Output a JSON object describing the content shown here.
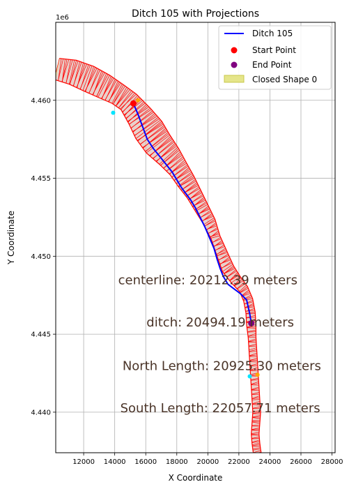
{
  "chart_data": {
    "type": "line",
    "title": "Ditch 105 with Projections",
    "xlabel": "X Coordinate",
    "ylabel": "Y Coordinate",
    "y_offset_label": "1e6",
    "xlim": [
      10200,
      28200
    ],
    "ylim": [
      4437400,
      4465000
    ],
    "x_ticks": [
      12000,
      14000,
      16000,
      18000,
      20000,
      22000,
      24000,
      26000,
      28000
    ],
    "x_tick_labels": [
      "12000",
      "14000",
      "16000",
      "18000",
      "20000",
      "22000",
      "24000",
      "26000",
      "28000"
    ],
    "y_ticks": [
      4440000,
      4445000,
      4450000,
      4455000,
      4460000
    ],
    "y_tick_labels": [
      "4.440",
      "4.445",
      "4.450",
      "4.455",
      "4.460"
    ],
    "grid": true,
    "legend_position": "top-right",
    "colors": {
      "ditch": "#0000ff",
      "start": "#ff0000",
      "end": "#800080",
      "shape_fill": "#e5e58a",
      "projection": "#ff0000",
      "inner_fill": "#d9a0c8",
      "annotation": "#4a3428",
      "cyan_marker": "#00e5ff",
      "orange_marker": "#ffa500"
    },
    "series": [
      {
        "name": "Ditch 105",
        "x": [
          15200,
          15500,
          15800,
          16100,
          16500,
          16900,
          17300,
          17700,
          18000,
          18300,
          18600,
          18900,
          19200,
          19500,
          19800,
          20100,
          20400,
          20600,
          20800,
          21000,
          21300,
          21700,
          22100,
          22500,
          22700,
          22800
        ],
        "y": [
          4459800,
          4459100,
          4458300,
          4457500,
          4456900,
          4456400,
          4455900,
          4455400,
          4454900,
          4454400,
          4454000,
          4453600,
          4453100,
          4452500,
          4451900,
          4451200,
          4450500,
          4449800,
          4449200,
          4448700,
          4448200,
          4447900,
          4447600,
          4447200,
          4446300,
          4445700
        ]
      }
    ],
    "start_point": {
      "name": "Start Point",
      "x": 15200,
      "y": 4459800
    },
    "end_point": {
      "name": "End Point",
      "x": 22800,
      "y": 4445700
    },
    "closed_shape": {
      "name": "Closed Shape 0"
    },
    "corridor_centerline": {
      "x": [
        10300,
        11300,
        12300,
        13300,
        14200,
        14900,
        15600,
        16200,
        16800,
        17500,
        18100,
        18600,
        19100,
        19600,
        20100,
        20500,
        20900,
        21300,
        21800,
        22300,
        22600,
        22750,
        22800,
        22850,
        22900,
        22950,
        23000,
        23050,
        23100,
        23150,
        23100,
        23050,
        23100,
        23150,
        23200,
        23250
      ],
      "y": [
        4462000,
        4461800,
        4461400,
        4460900,
        4460400,
        4459900,
        4459000,
        4458100,
        4457200,
        4456400,
        4455600,
        4454800,
        4454000,
        4453100,
        4452200,
        4451200,
        4450200,
        4449200,
        4448500,
        4447900,
        4447200,
        4446400,
        4445600,
        4444800,
        4444000,
        4443200,
        4442400,
        4441600,
        4440800,
        4440000,
        4439300,
        4438600,
        4438000,
        4437600,
        4437300,
        4437000
      ],
      "half_width": [
        700,
        800,
        850,
        800,
        700,
        700,
        850,
        1000,
        950,
        800,
        650,
        600,
        500,
        450,
        400,
        300,
        350,
        400,
        350,
        300,
        300,
        300,
        300,
        250,
        250,
        250,
        250,
        250,
        250,
        250,
        250,
        250,
        250,
        250,
        250,
        250
      ]
    },
    "markers": [
      {
        "x": 13900,
        "y": 4459200,
        "color": "cyan_marker"
      },
      {
        "x": 15500,
        "y": 4460000,
        "color": "orange_marker"
      },
      {
        "x": 22700,
        "y": 4442300,
        "color": "cyan_marker"
      },
      {
        "x": 23200,
        "y": 4442400,
        "color": "orange_marker"
      }
    ],
    "annotations": [
      {
        "text": "centerline: 20212.39 meters",
        "x": 20000,
        "y": 4448200
      },
      {
        "text": "ditch: 20494.19 meters",
        "x": 20800,
        "y": 4445500
      },
      {
        "text": "North Length: 20925.30 meters",
        "x": 20900,
        "y": 4442700
      },
      {
        "text": "South Length: 22057.71 meters",
        "x": 20800,
        "y": 4440000
      }
    ]
  }
}
